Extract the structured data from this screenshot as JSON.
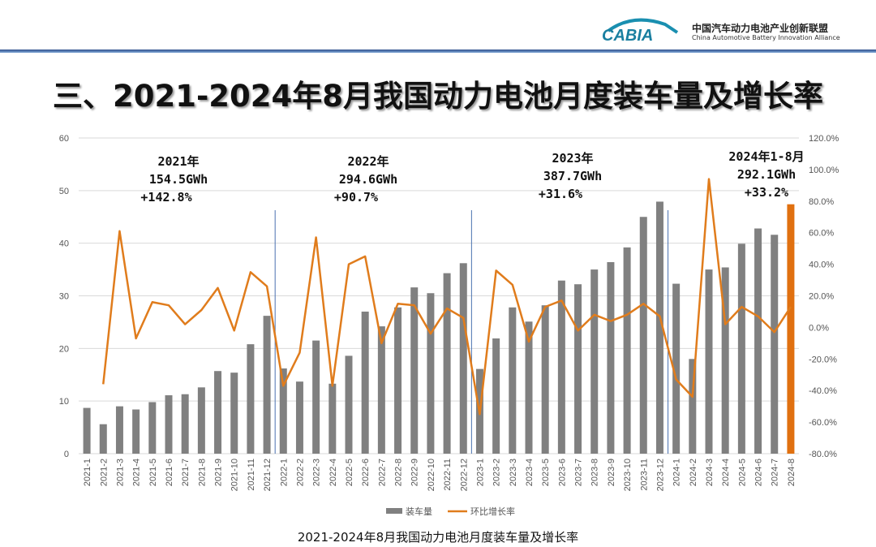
{
  "header": {
    "logo_text": "CABIA",
    "org_cn": "中国汽车动力电池产业创新联盟",
    "org_en": "China Automotive Battery Innovation Alliance",
    "title": "三、2021-2024年8月我国动力电池月度装车量及增长率"
  },
  "caption": "2021-2024年8月我国动力电池月度装车量及增长率",
  "colors": {
    "bar": "#808080",
    "highlight_bar": "#e07010",
    "line": "#e07c1c",
    "separator": "#4a72b0"
  },
  "chart_data": {
    "type": "bar+line",
    "categories": [
      "2021-1",
      "2021-2",
      "2021-3",
      "2021-4",
      "2021-5",
      "2021-6",
      "2021-7",
      "2021-8",
      "2021-9",
      "2021-10",
      "2021-11",
      "2021-12",
      "2022-1",
      "2022-2",
      "2022-3",
      "2022-4",
      "2022-5",
      "2022-6",
      "2022-7",
      "2022-8",
      "2022-9",
      "2022-10",
      "2022-11",
      "2022-12",
      "2023-1",
      "2023-2",
      "2023-3",
      "2023-4",
      "2023-5",
      "2023-6",
      "2023-7",
      "2023-8",
      "2023-9",
      "2023-10",
      "2023-11",
      "2023-12",
      "2024-1",
      "2024-2",
      "2024-3",
      "2024-4",
      "2024-5",
      "2024-6",
      "2024-7",
      "2024-8"
    ],
    "series": [
      {
        "name": "装车量",
        "type": "bar",
        "axis": "left",
        "values": [
          8.7,
          5.6,
          9.0,
          8.4,
          9.8,
          11.1,
          11.3,
          12.6,
          15.7,
          15.4,
          20.8,
          26.2,
          16.2,
          13.7,
          21.5,
          13.3,
          18.6,
          27.0,
          24.2,
          27.8,
          31.6,
          30.5,
          34.3,
          36.2,
          16.1,
          21.9,
          27.8,
          25.1,
          28.2,
          32.9,
          32.2,
          35.0,
          36.4,
          39.2,
          45.0,
          47.9,
          32.3,
          18.0,
          35.0,
          35.4,
          39.9,
          42.8,
          41.6,
          47.4
        ]
      },
      {
        "name": "环比增长率",
        "type": "line",
        "axis": "right",
        "values": [
          null,
          -36,
          61,
          -7,
          16,
          14,
          2,
          11,
          25,
          -2,
          35,
          26,
          -37,
          -16,
          57,
          -37,
          40,
          45,
          -10,
          15,
          14,
          -4,
          12,
          6,
          -55,
          36,
          27,
          -9,
          13,
          17,
          -2,
          8,
          4,
          8,
          15,
          7,
          -33,
          -44,
          94,
          2,
          13,
          7,
          -3,
          13
        ]
      }
    ],
    "left_axis": {
      "min": 0,
      "max": 60,
      "ticks": [
        "0",
        "10",
        "20",
        "30",
        "40",
        "50",
        "60"
      ]
    },
    "right_axis": {
      "min": -80,
      "max": 120,
      "ticks": [
        "-80.0%",
        "-60.0%",
        "-40.0%",
        "-20.0%",
        "0.0%",
        "20.0%",
        "40.0%",
        "60.0%",
        "80.0%",
        "100.0%",
        "120.0%"
      ]
    },
    "grid": true,
    "legend": "bottom",
    "annotations": [
      {
        "lines": [
          "2021年",
          "154.5GWh",
          "+142.8%"
        ]
      },
      {
        "lines": [
          "2022年",
          "294.6GWh",
          "+90.7%"
        ]
      },
      {
        "lines": [
          "2023年",
          "387.7GWh",
          "+31.6%"
        ]
      },
      {
        "lines": [
          "2024年1-8月",
          "292.1GWh",
          "+33.2%"
        ]
      }
    ]
  }
}
